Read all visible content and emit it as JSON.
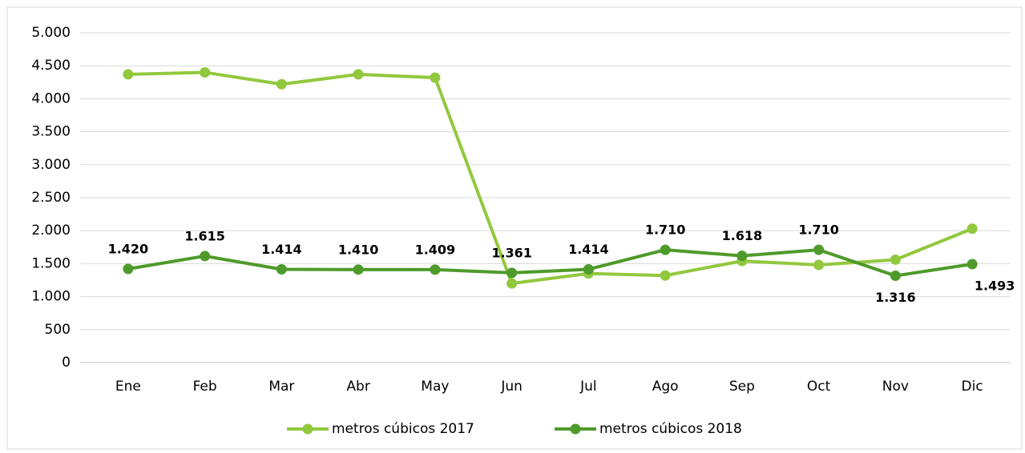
{
  "chart_data": {
    "type": "line",
    "categories": [
      "Ene",
      "Feb",
      "Mar",
      "Abr",
      "May",
      "Jun",
      "Jul",
      "Ago",
      "Sep",
      "Oct",
      "Nov",
      "Dic"
    ],
    "series": [
      {
        "name": "metros cúbicos 2017",
        "color": "#92c83e",
        "values": [
          4370,
          4400,
          4220,
          4370,
          4320,
          1200,
          1350,
          1320,
          1540,
          1480,
          1560,
          2030
        ]
      },
      {
        "name": "metros cúbicos 2018",
        "color": "#4e9a2a",
        "values": [
          1420,
          1615,
          1414,
          1410,
          1409,
          1361,
          1414,
          1710,
          1618,
          1710,
          1316,
          1493
        ],
        "value_labels": [
          "1.420",
          "1.615",
          "1.414",
          "1.410",
          "1.409",
          "1.361",
          "1.414",
          "1.710",
          "1.618",
          "1.710",
          "1.316",
          "1.493"
        ]
      }
    ],
    "ylim": [
      0,
      5000
    ],
    "yticks": [
      0,
      500,
      {
        "value": 1000,
        "label": "1.000"
      },
      {
        "value": 1500,
        "label": "1.500"
      },
      {
        "value": 2000,
        "label": "2.000"
      },
      {
        "value": 2500,
        "label": "2.500"
      },
      {
        "value": 3000,
        "label": "3.000"
      },
      {
        "value": 3500,
        "label": "3.500"
      },
      {
        "value": 4000,
        "label": "4.000"
      },
      {
        "value": 4500,
        "label": "4.500"
      },
      {
        "value": 5000,
        "label": "5.000"
      }
    ],
    "grid": true,
    "legend": "bottom"
  }
}
